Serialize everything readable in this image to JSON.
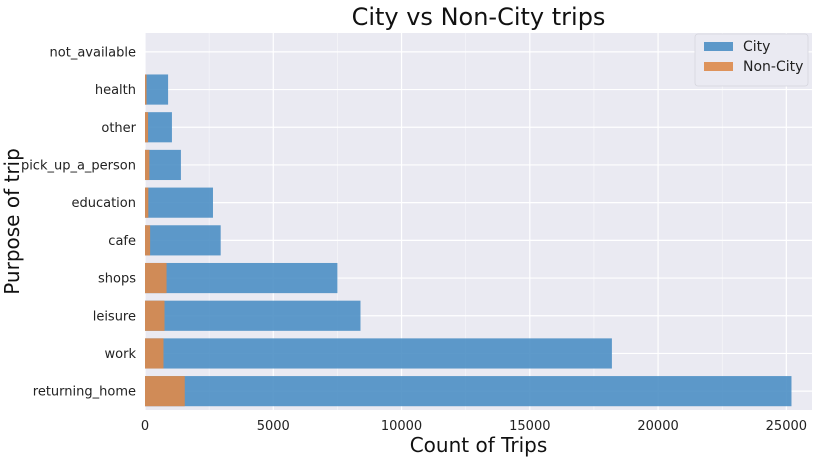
{
  "chart_data": {
    "type": "bar",
    "orientation": "horizontal",
    "title": "City vs Non-City trips",
    "xlabel": "Count of Trips",
    "ylabel": "Purpose of trip",
    "categories": [
      "returning_home",
      "work",
      "leisure",
      "shops",
      "cafe",
      "education",
      "pick_up_a_person",
      "other",
      "health",
      "not_available"
    ],
    "series": [
      {
        "name": "City",
        "color": "#4c8fc4",
        "values": [
          25200,
          18200,
          8400,
          7500,
          2950,
          2650,
          1400,
          1050,
          900,
          0
        ]
      },
      {
        "name": "Non-City",
        "color": "#dd8a4a",
        "values": [
          1550,
          720,
          760,
          840,
          200,
          130,
          170,
          120,
          60,
          0
        ]
      }
    ],
    "xlim": [
      0,
      26000
    ],
    "xticks": [
      0,
      5000,
      10000,
      15000,
      20000,
      25000
    ],
    "grid": true,
    "legend_position": "top-right",
    "style": {
      "plot_background": "#eaeaf2",
      "grid_color": "#ffffff"
    }
  }
}
